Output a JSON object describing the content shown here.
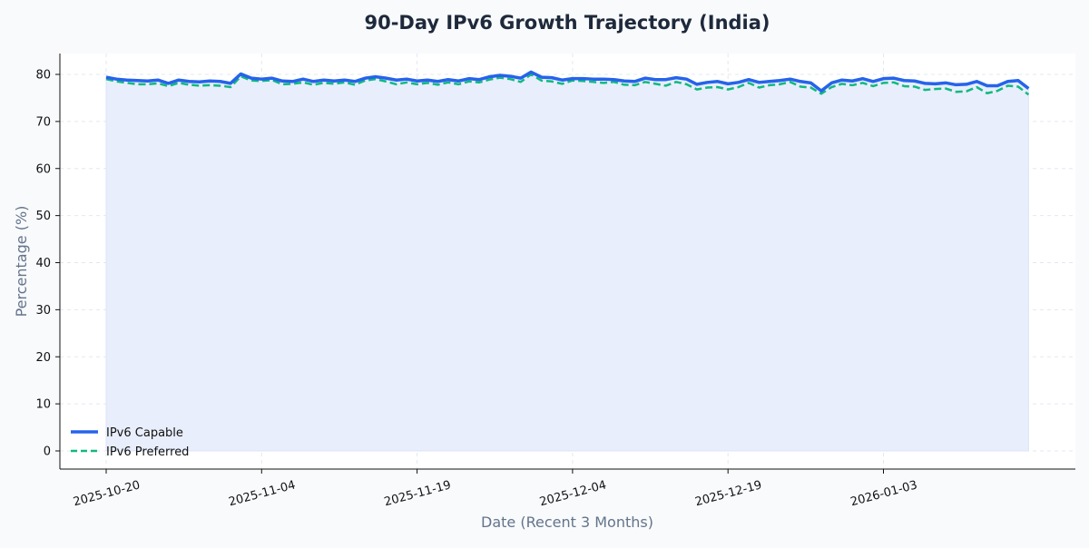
{
  "chart_data": {
    "type": "line",
    "title": "90-Day IPv6 Growth Trajectory (India)",
    "xlabel": "Date (Recent 3 Months)",
    "ylabel": "Percentage (%)",
    "start_date": "2025-10-20",
    "x_tick_labels": [
      "2025-10-20",
      "2025-11-04",
      "2025-11-19",
      "2025-12-04",
      "2025-12-19",
      "2026-01-03"
    ],
    "y_ticks": [
      0,
      10,
      20,
      30,
      40,
      50,
      60,
      70,
      80
    ],
    "ylim": [
      -4,
      84.5
    ],
    "grid": true,
    "legend_position": "lower-left",
    "series": [
      {
        "name": "IPv6 Capable",
        "color": "#2563eb",
        "style": "solid",
        "fill": "#e8eefb",
        "values": [
          79.4,
          79.0,
          78.8,
          78.7,
          78.6,
          78.8,
          78.1,
          78.8,
          78.5,
          78.4,
          78.6,
          78.5,
          78.1,
          80.1,
          79.2,
          79.0,
          79.2,
          78.6,
          78.5,
          79.0,
          78.5,
          78.8,
          78.6,
          78.8,
          78.5,
          79.2,
          79.5,
          79.2,
          78.8,
          79.0,
          78.6,
          78.8,
          78.5,
          78.9,
          78.6,
          79.1,
          78.9,
          79.5,
          79.8,
          79.6,
          79.2,
          80.5,
          79.4,
          79.3,
          78.8,
          79.1,
          79.1,
          79.0,
          79.0,
          78.9,
          78.6,
          78.5,
          79.2,
          78.9,
          78.9,
          79.3,
          79.0,
          77.9,
          78.3,
          78.5,
          78.0,
          78.3,
          78.9,
          78.3,
          78.5,
          78.7,
          79.0,
          78.5,
          78.2,
          76.5,
          78.2,
          78.8,
          78.6,
          79.1,
          78.5,
          79.1,
          79.2,
          78.7,
          78.6,
          78.1,
          78.0,
          78.2,
          77.8,
          77.9,
          78.5,
          77.6,
          77.6,
          78.5,
          78.7,
          77.0
        ]
      },
      {
        "name": "IPv6 Preferred",
        "color": "#10b981",
        "style": "dashed",
        "values": [
          79.0,
          78.5,
          78.2,
          77.9,
          77.9,
          78.1,
          77.5,
          78.2,
          77.8,
          77.6,
          77.7,
          77.6,
          77.3,
          79.6,
          78.7,
          78.6,
          78.8,
          77.9,
          78.0,
          78.3,
          77.8,
          78.2,
          78.0,
          78.3,
          77.8,
          78.7,
          79.0,
          78.5,
          77.9,
          78.3,
          77.9,
          78.2,
          77.8,
          78.3,
          77.9,
          78.5,
          78.3,
          78.9,
          79.3,
          79.0,
          78.4,
          80.0,
          78.7,
          78.5,
          78.0,
          78.7,
          78.6,
          78.4,
          78.2,
          78.4,
          77.8,
          77.7,
          78.4,
          78.0,
          77.6,
          78.4,
          77.9,
          76.8,
          77.2,
          77.3,
          76.8,
          77.3,
          78.2,
          77.2,
          77.7,
          77.9,
          78.4,
          77.4,
          77.2,
          75.9,
          77.3,
          78.0,
          77.7,
          78.2,
          77.5,
          78.2,
          78.3,
          77.5,
          77.4,
          76.7,
          76.9,
          77.0,
          76.3,
          76.4,
          77.3,
          76.0,
          76.5,
          77.6,
          77.4,
          75.7
        ]
      }
    ]
  }
}
